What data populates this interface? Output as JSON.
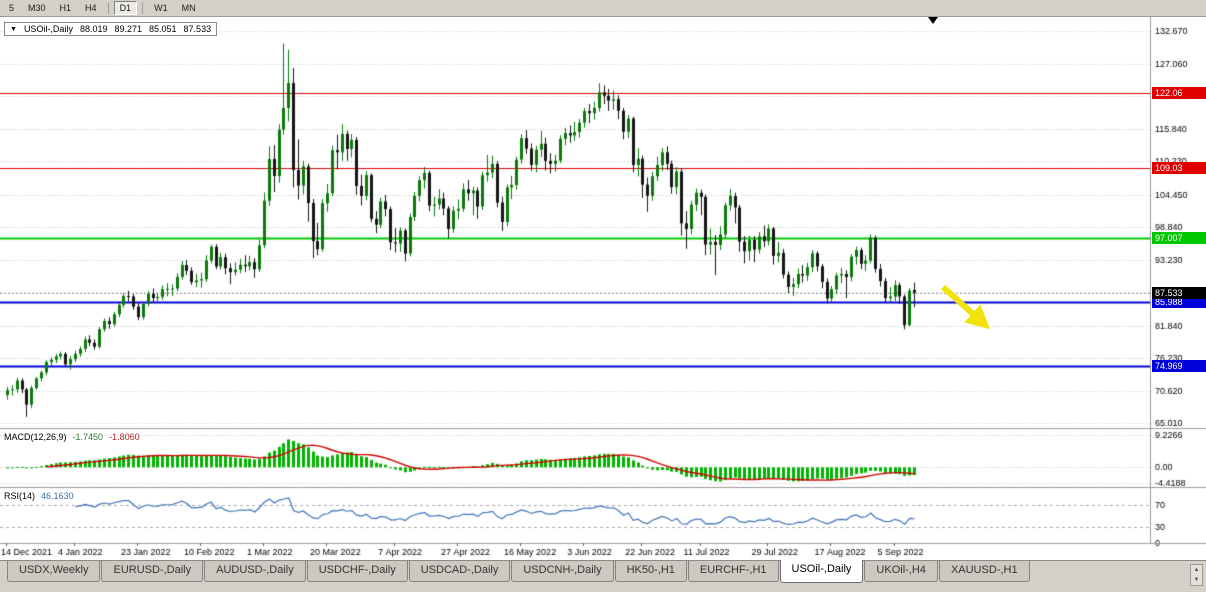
{
  "colors": {
    "chart_bg": "#ffffff",
    "toolbar_bg": "#d4d0c8",
    "bull": "#0b7a0b",
    "bear": "#161616",
    "grid": "#c3c3c3",
    "axis_text": "#000000",
    "macd_hist": "#00b400",
    "macd_signal": "#d40000",
    "rsi_line": "#4273b9",
    "level_dash": "#ababab",
    "separator": "#9c9c9c",
    "bid_line": "#9a9a9a",
    "annotation_arrow": "#f2e20c"
  },
  "icons": {
    "symbol_dropdown": "▼",
    "tab_scroll_up": "▲",
    "tab_scroll_down": "▼"
  },
  "toolbar": {
    "timeframes": [
      {
        "label": "5",
        "active": false
      },
      {
        "label": "M30",
        "active": false
      },
      {
        "label": "H1",
        "active": false
      },
      {
        "label": "H4",
        "active": false
      },
      {
        "label": "D1",
        "active": true
      },
      {
        "label": "W1",
        "active": false
      },
      {
        "label": "MN",
        "active": false
      }
    ]
  },
  "chart_header": {
    "symbol": "USOil-,Daily",
    "open": "88.019",
    "high": "89.271",
    "low": "85.051",
    "close": "87.533"
  },
  "indicators": {
    "macd": {
      "name": "MACD(12,26,9)",
      "value_main": "-1.7450",
      "value_signal": "-1.8060"
    },
    "rsi": {
      "name": "RSI(14)",
      "value": "46.1630"
    }
  },
  "chart_data": {
    "type": "candlestick",
    "symbol": "USOil-,Daily",
    "timeframe": "Daily",
    "price_axis": {
      "min": 64.2,
      "max": 135.1,
      "ticks": [
        {
          "v": 132.67,
          "text": "132.670"
        },
        {
          "v": 127.06,
          "text": "127.060"
        },
        {
          "v": 121.45,
          "text": "121.450"
        },
        {
          "v": 115.84,
          "text": "115.840"
        },
        {
          "v": 110.23,
          "text": "110.230"
        },
        {
          "v": 104.45,
          "text": "104.450"
        },
        {
          "v": 98.84,
          "text": "98.840"
        },
        {
          "v": 93.23,
          "text": "93.230"
        },
        {
          "v": 87.62,
          "text": "87.620"
        },
        {
          "v": 81.84,
          "text": "81.840"
        },
        {
          "v": 76.23,
          "text": "76.230"
        },
        {
          "v": 70.62,
          "text": "70.620"
        },
        {
          "v": 65.01,
          "text": "65.010"
        }
      ]
    },
    "hlines": [
      {
        "price": 122.06,
        "label": "122.06",
        "color": "#e00000",
        "width": 1
      },
      {
        "price": 109.03,
        "label": "109.03",
        "color": "#e00000",
        "width": 1
      },
      {
        "price": 97.007,
        "label": "97.007",
        "color": "#00c800",
        "width": 2
      },
      {
        "price": 85.988,
        "label": "85.988",
        "color": "#0000d8",
        "width": 2
      },
      {
        "price": 74.969,
        "label": "74.969",
        "color": "#0000d8",
        "width": 2
      }
    ],
    "current_price": {
      "value": 87.533,
      "text": "87.533",
      "color": "#000000"
    },
    "date_axis": [
      {
        "text": "14 Dec 2021",
        "i": 0
      },
      {
        "text": "4 Jan 2022",
        "i": 14
      },
      {
        "text": "23 Jan 2022",
        "i": 27
      },
      {
        "text": "10 Feb 2022",
        "i": 40
      },
      {
        "text": "1 Mar 2022",
        "i": 53
      },
      {
        "text": "20 Mar 2022",
        "i": 66
      },
      {
        "text": "7 Apr 2022",
        "i": 80
      },
      {
        "text": "27 Apr 2022",
        "i": 93
      },
      {
        "text": "16 May 2022",
        "i": 106
      },
      {
        "text": "3 Jun 2022",
        "i": 119
      },
      {
        "text": "22 Jun 2022",
        "i": 131
      },
      {
        "text": "11 Jul 2022",
        "i": 143
      },
      {
        "text": "29 Jul 2022",
        "i": 157
      },
      {
        "text": "17 Aug 2022",
        "i": 170
      },
      {
        "text": "5 Sep 2022",
        "i": 183
      }
    ],
    "macd": {
      "fast": 12,
      "slow": 26,
      "signal": 9,
      "scale": {
        "min": -5.6,
        "max": 10.6
      },
      "scale_labels": [
        {
          "v": 9.2266,
          "text": "9.2266"
        },
        {
          "v": 0,
          "text": "0.00"
        },
        {
          "v": -4.4188,
          "text": "-4.4188"
        }
      ]
    },
    "rsi": {
      "period": 14,
      "scale": {
        "min": 0,
        "max": 100
      },
      "levels": [
        {
          "v": 70,
          "text": "70"
        },
        {
          "v": 30,
          "text": "30"
        },
        {
          "v": 0,
          "text": "0"
        }
      ]
    },
    "candles": [
      [
        69.9,
        71.3,
        69.1,
        70.73
      ],
      [
        70.73,
        71.6,
        69.8,
        70.87
      ],
      [
        70.87,
        72.9,
        70.3,
        72.38
      ],
      [
        72.38,
        72.8,
        70.2,
        70.86
      ],
      [
        70.86,
        71.1,
        66.12,
        68.23
      ],
      [
        68.23,
        71.5,
        67.6,
        71.12
      ],
      [
        71.12,
        73.0,
        70.8,
        72.76
      ],
      [
        72.76,
        74.1,
        72.2,
        73.79
      ],
      [
        73.79,
        75.9,
        73.3,
        75.57
      ],
      [
        75.57,
        76.4,
        74.9,
        75.98
      ],
      [
        75.98,
        77.0,
        75.4,
        76.56
      ],
      [
        76.56,
        77.4,
        76.0,
        76.99
      ],
      [
        76.99,
        77.3,
        74.8,
        75.21
      ],
      [
        75.21,
        76.6,
        74.3,
        76.08
      ],
      [
        76.08,
        77.5,
        75.6,
        76.99
      ],
      [
        76.99,
        78.3,
        76.5,
        77.85
      ],
      [
        77.85,
        80.0,
        77.3,
        79.46
      ],
      [
        79.46,
        80.2,
        78.3,
        78.9
      ],
      [
        78.9,
        79.5,
        77.7,
        78.23
      ],
      [
        78.23,
        81.6,
        77.9,
        81.22
      ],
      [
        81.22,
        83.1,
        80.8,
        82.64
      ],
      [
        82.64,
        83.3,
        81.3,
        82.12
      ],
      [
        82.12,
        84.2,
        81.7,
        83.82
      ],
      [
        83.82,
        85.8,
        83.3,
        85.43
      ],
      [
        85.43,
        87.4,
        85.0,
        86.96
      ],
      [
        86.96,
        87.9,
        86.0,
        86.9
      ],
      [
        86.9,
        87.3,
        84.6,
        85.14
      ],
      [
        85.14,
        85.7,
        82.8,
        83.31
      ],
      [
        83.31,
        86.0,
        82.9,
        85.6
      ],
      [
        85.6,
        87.8,
        85.2,
        87.35
      ],
      [
        87.35,
        88.3,
        85.9,
        86.61
      ],
      [
        86.61,
        87.5,
        85.7,
        86.82
      ],
      [
        86.82,
        88.8,
        86.3,
        88.15
      ],
      [
        88.15,
        89.2,
        86.9,
        88.2
      ],
      [
        88.2,
        89.0,
        87.0,
        88.26
      ],
      [
        88.26,
        90.9,
        87.8,
        90.27
      ],
      [
        90.27,
        93.0,
        89.8,
        92.31
      ],
      [
        92.31,
        93.2,
        90.6,
        91.32
      ],
      [
        91.32,
        91.9,
        88.9,
        89.36
      ],
      [
        89.36,
        90.8,
        88.5,
        89.66
      ],
      [
        89.66,
        91.0,
        88.4,
        89.88
      ],
      [
        89.88,
        94.0,
        89.4,
        93.1
      ],
      [
        93.1,
        95.8,
        92.6,
        95.46
      ],
      [
        95.46,
        95.9,
        91.6,
        92.07
      ],
      [
        92.07,
        94.4,
        91.5,
        93.66
      ],
      [
        93.66,
        94.3,
        90.7,
        91.76
      ],
      [
        91.76,
        92.6,
        89.0,
        91.07
      ],
      [
        91.07,
        92.8,
        90.5,
        91.5
      ],
      [
        91.5,
        93.4,
        90.9,
        92.35
      ],
      [
        92.35,
        94.0,
        91.1,
        92.1
      ],
      [
        92.1,
        93.9,
        91.4,
        92.81
      ],
      [
        92.81,
        93.5,
        90.1,
        91.59
      ],
      [
        91.59,
        96.7,
        91.1,
        95.72
      ],
      [
        95.72,
        104.8,
        95.2,
        103.41
      ],
      [
        103.41,
        112.8,
        102.5,
        110.6
      ],
      [
        110.6,
        113.0,
        104.9,
        107.67
      ],
      [
        107.67,
        116.6,
        106.5,
        115.68
      ],
      [
        115.68,
        130.5,
        114.8,
        119.4
      ],
      [
        119.4,
        129.44,
        117.1,
        123.7
      ],
      [
        123.7,
        126.3,
        105.7,
        108.7
      ],
      [
        108.7,
        114.0,
        103.6,
        106.02
      ],
      [
        106.02,
        110.3,
        104.5,
        109.33
      ],
      [
        109.33,
        109.8,
        99.8,
        103.01
      ],
      [
        103.01,
        103.7,
        93.5,
        96.44
      ],
      [
        96.44,
        99.6,
        94.0,
        95.04
      ],
      [
        95.04,
        103.7,
        94.6,
        102.98
      ],
      [
        102.98,
        106.3,
        101.5,
        104.7
      ],
      [
        104.7,
        112.9,
        104.2,
        112.12
      ],
      [
        112.12,
        114.8,
        108.8,
        111.76
      ],
      [
        111.76,
        116.6,
        110.3,
        114.93
      ],
      [
        114.93,
        115.5,
        110.3,
        112.34
      ],
      [
        112.34,
        114.9,
        110.9,
        113.9
      ],
      [
        113.9,
        114.4,
        104.4,
        105.96
      ],
      [
        105.96,
        107.9,
        102.6,
        104.24
      ],
      [
        104.24,
        108.5,
        103.5,
        107.82
      ],
      [
        107.82,
        108.1,
        99.7,
        100.28
      ],
      [
        100.28,
        101.6,
        97.8,
        99.27
      ],
      [
        99.27,
        103.9,
        98.7,
        103.28
      ],
      [
        103.28,
        104.4,
        100.7,
        101.96
      ],
      [
        101.96,
        102.4,
        94.9,
        96.23
      ],
      [
        96.23,
        98.7,
        94.5,
        96.03
      ],
      [
        96.03,
        98.8,
        94.6,
        98.26
      ],
      [
        98.26,
        98.6,
        92.93,
        94.29
      ],
      [
        94.29,
        101.2,
        93.8,
        100.6
      ],
      [
        100.6,
        104.9,
        99.9,
        104.25
      ],
      [
        104.25,
        107.6,
        103.3,
        106.95
      ],
      [
        106.95,
        109.2,
        105.5,
        108.21
      ],
      [
        108.21,
        108.6,
        101.6,
        102.56
      ],
      [
        102.56,
        104.1,
        100.7,
        102.75
      ],
      [
        102.75,
        105.4,
        101.9,
        103.79
      ],
      [
        103.79,
        104.8,
        100.9,
        102.07
      ],
      [
        102.07,
        102.5,
        96.9,
        98.54
      ],
      [
        98.54,
        102.4,
        97.9,
        101.7
      ],
      [
        101.7,
        103.6,
        100.2,
        102.02
      ],
      [
        102.02,
        106.4,
        101.5,
        105.36
      ],
      [
        105.36,
        107.0,
        103.4,
        104.69
      ],
      [
        104.69,
        105.8,
        100.9,
        105.17
      ],
      [
        105.17,
        105.7,
        100.3,
        102.41
      ],
      [
        102.41,
        108.4,
        101.8,
        107.81
      ],
      [
        107.81,
        111.3,
        106.7,
        108.26
      ],
      [
        108.26,
        111.2,
        107.3,
        109.77
      ],
      [
        109.77,
        110.2,
        102.3,
        103.09
      ],
      [
        103.09,
        104.1,
        98.2,
        99.76
      ],
      [
        99.76,
        106.2,
        99.0,
        105.71
      ],
      [
        105.71,
        107.7,
        103.7,
        106.13
      ],
      [
        106.13,
        111.0,
        105.3,
        110.49
      ],
      [
        110.49,
        114.9,
        109.8,
        114.2
      ],
      [
        114.2,
        115.6,
        111.5,
        112.4
      ],
      [
        112.4,
        113.3,
        108.6,
        109.59
      ],
      [
        109.59,
        112.9,
        108.3,
        112.21
      ],
      [
        112.21,
        115.5,
        110.9,
        113.23
      ],
      [
        113.23,
        114.3,
        108.6,
        110.29
      ],
      [
        110.29,
        111.6,
        108.1,
        109.77
      ],
      [
        109.77,
        111.3,
        108.4,
        110.33
      ],
      [
        110.33,
        114.7,
        109.9,
        114.09
      ],
      [
        114.09,
        116.0,
        113.0,
        115.07
      ],
      [
        115.07,
        116.4,
        113.4,
        114.67
      ],
      [
        114.67,
        117.0,
        113.7,
        115.26
      ],
      [
        115.26,
        117.5,
        114.3,
        116.87
      ],
      [
        116.87,
        119.4,
        116.0,
        118.87
      ],
      [
        118.87,
        120.1,
        116.8,
        118.5
      ],
      [
        118.5,
        120.5,
        117.4,
        119.41
      ],
      [
        119.41,
        123.68,
        118.8,
        122.11
      ],
      [
        122.11,
        123.3,
        120.1,
        121.51
      ],
      [
        121.51,
        122.7,
        118.9,
        120.67
      ],
      [
        120.67,
        122.4,
        119.1,
        120.93
      ],
      [
        120.93,
        121.6,
        117.5,
        118.93
      ],
      [
        118.93,
        119.4,
        114.0,
        115.31
      ],
      [
        115.31,
        118.2,
        114.2,
        117.58
      ],
      [
        117.58,
        117.9,
        108.3,
        109.56
      ],
      [
        109.56,
        112.5,
        107.6,
        110.65
      ],
      [
        110.65,
        111.2,
        103.9,
        106.19
      ],
      [
        106.19,
        107.4,
        101.5,
        104.27
      ],
      [
        104.27,
        108.4,
        103.4,
        107.62
      ],
      [
        107.62,
        111.0,
        106.8,
        109.57
      ],
      [
        109.57,
        112.5,
        108.5,
        111.76
      ],
      [
        111.76,
        112.8,
        108.7,
        109.78
      ],
      [
        109.78,
        110.3,
        104.6,
        105.76
      ],
      [
        105.76,
        109.2,
        104.5,
        108.43
      ],
      [
        108.43,
        108.9,
        97.4,
        99.5
      ],
      [
        99.5,
        101.6,
        95.1,
        98.53
      ],
      [
        98.53,
        103.4,
        97.6,
        102.73
      ],
      [
        102.73,
        105.5,
        101.6,
        104.79
      ],
      [
        104.79,
        105.3,
        100.9,
        104.09
      ],
      [
        104.09,
        104.5,
        94.0,
        95.84
      ],
      [
        95.84,
        98.6,
        94.1,
        96.3
      ],
      [
        96.3,
        97.5,
        90.56,
        95.78
      ],
      [
        95.78,
        99.0,
        94.9,
        97.59
      ],
      [
        97.59,
        103.1,
        97.0,
        102.6
      ],
      [
        102.6,
        105.4,
        101.7,
        104.22
      ],
      [
        104.22,
        104.8,
        99.5,
        102.26
      ],
      [
        102.26,
        102.7,
        94.6,
        96.35
      ],
      [
        96.35,
        97.3,
        92.6,
        94.7
      ],
      [
        94.7,
        97.4,
        93.1,
        96.7
      ],
      [
        96.7,
        97.3,
        92.8,
        94.98
      ],
      [
        94.98,
        98.0,
        94.3,
        97.26
      ],
      [
        97.26,
        99.1,
        95.4,
        96.42
      ],
      [
        96.42,
        99.3,
        95.7,
        98.62
      ],
      [
        98.62,
        98.9,
        92.4,
        93.89
      ],
      [
        93.89,
        96.3,
        92.8,
        94.42
      ],
      [
        94.42,
        95.1,
        90.0,
        90.66
      ],
      [
        90.66,
        91.2,
        87.5,
        88.54
      ],
      [
        88.54,
        90.1,
        87.0,
        89.01
      ],
      [
        89.01,
        91.7,
        88.3,
        90.76
      ],
      [
        90.76,
        92.3,
        89.3,
        90.5
      ],
      [
        90.5,
        92.7,
        89.6,
        91.93
      ],
      [
        91.93,
        94.9,
        91.1,
        94.34
      ],
      [
        94.34,
        94.7,
        91.2,
        92.09
      ],
      [
        92.09,
        92.5,
        88.3,
        89.41
      ],
      [
        89.41,
        90.0,
        85.7,
        86.53
      ],
      [
        86.53,
        88.7,
        85.9,
        88.11
      ],
      [
        88.11,
        91.0,
        87.3,
        90.5
      ],
      [
        90.5,
        91.8,
        89.2,
        90.77
      ],
      [
        90.77,
        91.4,
        86.6,
        90.23
      ],
      [
        90.23,
        94.2,
        89.5,
        93.74
      ],
      [
        93.74,
        95.5,
        92.4,
        94.89
      ],
      [
        94.89,
        95.3,
        91.6,
        92.52
      ],
      [
        92.52,
        94.0,
        91.3,
        93.06
      ],
      [
        93.06,
        97.6,
        92.6,
        97.01
      ],
      [
        97.01,
        97.4,
        91.0,
        91.64
      ],
      [
        91.64,
        92.5,
        88.6,
        89.55
      ],
      [
        89.55,
        90.1,
        85.8,
        86.61
      ],
      [
        86.61,
        88.5,
        85.9,
        86.87
      ],
      [
        86.87,
        89.7,
        86.1,
        88.85
      ],
      [
        88.85,
        89.3,
        85.6,
        86.88
      ],
      [
        86.88,
        87.2,
        81.2,
        81.94
      ],
      [
        81.94,
        88.3,
        81.7,
        87.9
      ],
      [
        88.019,
        89.271,
        85.051,
        87.533
      ]
    ]
  },
  "tabs": [
    {
      "label": "USDX,Weekly",
      "active": false
    },
    {
      "label": "EURUSD-,Daily",
      "active": false
    },
    {
      "label": "AUDUSD-,Daily",
      "active": false
    },
    {
      "label": "USDCHF-,Daily",
      "active": false
    },
    {
      "label": "USDCAD-,Daily",
      "active": false
    },
    {
      "label": "USDCNH-,Daily",
      "active": false
    },
    {
      "label": "HK50-,H1",
      "active": false
    },
    {
      "label": "EURCHF-,H1",
      "active": false
    },
    {
      "label": "USOil-,Daily",
      "active": true
    },
    {
      "label": "UKOil-,H4",
      "active": false
    },
    {
      "label": "XAUUSD-,H1",
      "active": false
    }
  ]
}
